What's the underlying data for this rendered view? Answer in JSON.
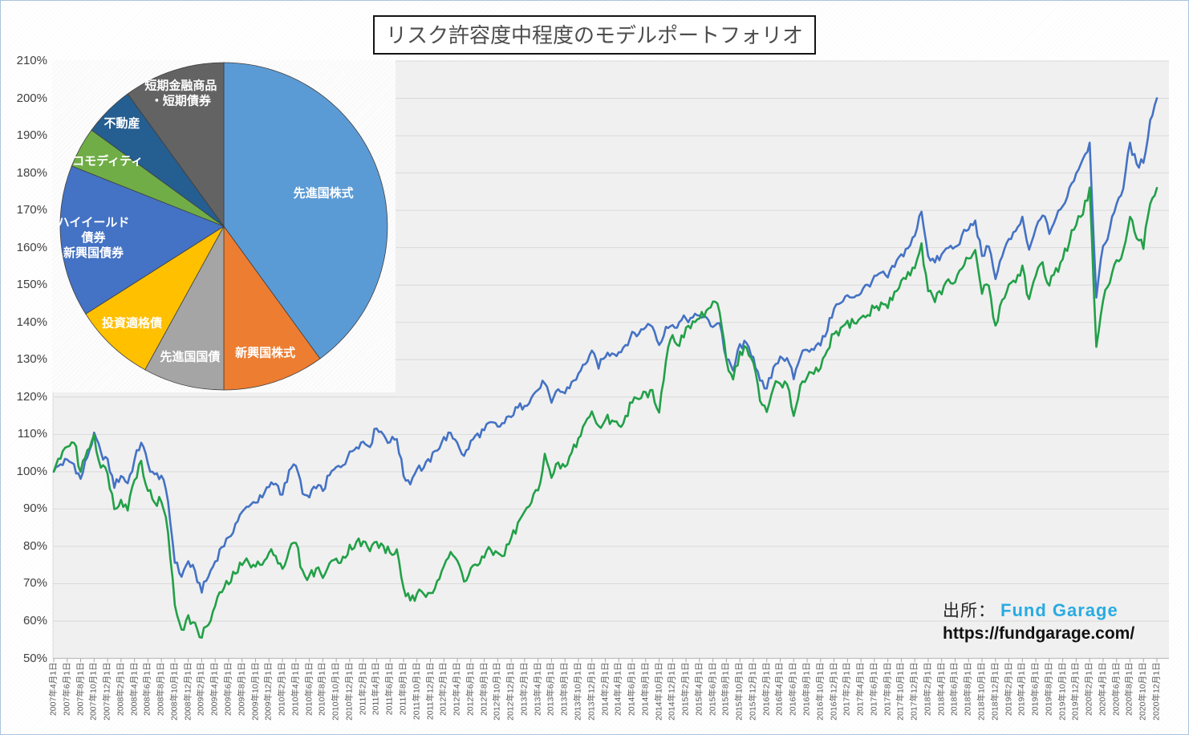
{
  "title": "リスク許容度中程度のモデルポートフォリオ",
  "source": {
    "label": "出所：",
    "name": "Fund Garage",
    "name_color": "#29ABE2",
    "url": "https://fundgarage.com/"
  },
  "chart_data": [
    {
      "type": "pie",
      "title": "モデルポートフォリオ資産配分",
      "start_angle_deg": 0,
      "direction": "clockwise",
      "slices": [
        {
          "label_lines": [
            "先進国株式"
          ],
          "value_pct": 40,
          "color": "#5B9BD5",
          "label_color": "#FFFFFF"
        },
        {
          "label_lines": [
            "新興国株式"
          ],
          "value_pct": 10,
          "color": "#ED7D31",
          "label_color": "#FFFFFF"
        },
        {
          "label_lines": [
            "先進国国債"
          ],
          "value_pct": 8,
          "color": "#A5A5A5",
          "label_color": "#FFFFFF"
        },
        {
          "label_lines": [
            "投資適格債"
          ],
          "value_pct": 8,
          "color": "#FFC000",
          "label_color": "#FFFFFF"
        },
        {
          "label_lines": [
            "ハイイールド",
            "債券",
            "新興国債券"
          ],
          "value_pct": 15,
          "color": "#4472C4",
          "label_color": "#FFFFFF"
        },
        {
          "label_lines": [
            "コモディティ"
          ],
          "value_pct": 4,
          "color": "#70AD47",
          "label_color": "#FFFFFF"
        },
        {
          "label_lines": [
            "不動産"
          ],
          "value_pct": 5,
          "color": "#255E91",
          "label_color": "#FFFFFF"
        },
        {
          "label_lines": [
            "短期金融商品",
            "・短期債券"
          ],
          "value_pct": 10,
          "color": "#636363",
          "label_color": "#FFFFFF"
        }
      ]
    },
    {
      "type": "line",
      "grid": true,
      "legend": "none",
      "ylim_pct": [
        50,
        210
      ],
      "y_tick_labels": [
        "50%",
        "60%",
        "70%",
        "80%",
        "90%",
        "100%",
        "110%",
        "120%",
        "130%",
        "140%",
        "150%",
        "160%",
        "170%",
        "180%",
        "190%",
        "200%",
        "210%"
      ],
      "x_start_month": "2007-04",
      "x_end_month": "2020-12",
      "x_tick_labels": [
        "2007年4月1日",
        "2007年6月1日",
        "2007年8月1日",
        "2007年10月1日",
        "2007年12月1日",
        "2008年2月1日",
        "2008年4月1日",
        "2008年6月1日",
        "2008年8月1日",
        "2008年10月1日",
        "2008年12月1日",
        "2009年2月1日",
        "2009年4月1日",
        "2009年6月1日",
        "2009年8月1日",
        "2009年10月1日",
        "2009年12月1日",
        "2010年2月1日",
        "2010年4月1日",
        "2010年6月1日",
        "2010年8月1日",
        "2010年10月1日",
        "2010年12月1日",
        "2011年2月1日",
        "2011年4月1日",
        "2011年6月1日",
        "2011年8月1日",
        "2011年10月1日",
        "2011年12月1日",
        "2012年2月1日",
        "2012年4月1日",
        "2012年6月1日",
        "2012年8月1日",
        "2012年10月1日",
        "2012年12月1日",
        "2013年2月1日",
        "2013年4月1日",
        "2013年6月1日",
        "2013年8月1日",
        "2013年10月1日",
        "2013年12月1日",
        "2014年2月1日",
        "2014年4月1日",
        "2014年6月1日",
        "2014年8月1日",
        "2014年10月1日",
        "2014年12月1日",
        "2015年2月1日",
        "2015年4月1日",
        "2015年6月1日",
        "2015年8月1日",
        "2015年10月1日",
        "2015年12月1日",
        "2016年2月1日",
        "2016年4月1日",
        "2016年6月1日",
        "2016年8月1日",
        "2016年10月1日",
        "2016年12月1日",
        "2017年2月1日",
        "2017年4月1日",
        "2017年6月1日",
        "2017年8月1日",
        "2017年10月1日",
        "2017年12月1日",
        "2018年2月1日",
        "2018年4月1日",
        "2018年6月1日",
        "2018年8月1日",
        "2018年10月1日",
        "2018年12月1日",
        "2019年2月1日",
        "2019年4月1日",
        "2019年6月1日",
        "2019年8月1日",
        "2019年10月1日",
        "2019年12月1日",
        "2020年2月1日",
        "2020年4月1日",
        "2020年6月1日",
        "2020年8月1日",
        "2020年10月1日",
        "2020年12月1日"
      ],
      "series": [
        {
          "id": "blue-line",
          "color": "#4472C4",
          "values_pct_monthly": [
            100,
            102,
            103,
            102,
            98,
            104,
            110,
            105,
            103,
            96,
            99,
            97,
            103,
            108,
            102,
            99,
            99,
            92,
            76,
            72,
            76,
            73,
            68,
            72,
            76,
            80,
            82,
            86,
            89,
            91,
            92,
            93,
            96,
            97,
            94,
            100,
            102,
            94,
            93,
            96,
            95,
            99,
            101,
            102,
            105,
            107,
            108,
            107,
            112,
            110,
            108,
            109,
            99,
            97,
            101,
            101,
            103,
            106,
            109,
            110,
            108,
            104,
            108,
            110,
            111,
            113,
            112,
            113,
            115,
            117,
            118,
            120,
            122,
            124,
            118,
            122,
            121,
            124,
            126,
            129,
            132,
            128,
            131,
            132,
            132,
            134,
            137,
            137,
            139,
            139,
            134,
            139,
            139,
            140,
            141,
            141,
            142,
            141,
            139,
            140,
            130,
            127,
            134,
            134,
            131,
            124,
            122,
            128,
            131,
            130,
            125,
            131,
            133,
            133,
            134,
            138,
            144,
            145,
            147,
            147,
            148,
            150,
            152,
            153,
            152,
            155,
            158,
            160,
            163,
            170,
            158,
            156,
            158,
            160,
            160,
            163,
            165,
            167,
            158,
            160,
            152,
            158,
            162,
            164,
            168,
            159,
            165,
            169,
            164,
            168,
            171,
            176,
            180,
            184,
            188,
            147,
            160,
            165,
            172,
            176,
            188,
            182,
            183,
            194,
            200
          ]
        },
        {
          "id": "green-line",
          "color": "#22A048",
          "values_pct_monthly": [
            100,
            104,
            107,
            108,
            100,
            106,
            110,
            101,
            100,
            90,
            93,
            90,
            98,
            103,
            95,
            92,
            92,
            84,
            64,
            58,
            61,
            59,
            56,
            59,
            64,
            68,
            70,
            73,
            75,
            76,
            75,
            75,
            78,
            78,
            74,
            79,
            81,
            73,
            72,
            74,
            72,
            75,
            77,
            77,
            80,
            81,
            81,
            79,
            81,
            80,
            78,
            79,
            69,
            65,
            67,
            67,
            68,
            71,
            75,
            78,
            76,
            71,
            74,
            75,
            77,
            79,
            78,
            78,
            82,
            86,
            89,
            92,
            95,
            105,
            98,
            102,
            101,
            105,
            109,
            113,
            116,
            112,
            114,
            114,
            112,
            115,
            119,
            119,
            121,
            122,
            116,
            130,
            137,
            134,
            138,
            140,
            141,
            143,
            145,
            143,
            130,
            125,
            132,
            133,
            129,
            119,
            116,
            123,
            124,
            123,
            115,
            123,
            125,
            126,
            128,
            132,
            137,
            138,
            140,
            140,
            141,
            142,
            144,
            145,
            144,
            148,
            151,
            153,
            155,
            161,
            148,
            146,
            148,
            151,
            151,
            154,
            157,
            159,
            148,
            150,
            139,
            146,
            150,
            151,
            155,
            146,
            152,
            156,
            150,
            154,
            157,
            162,
            166,
            169,
            176,
            133,
            146,
            150,
            157,
            159,
            168,
            162,
            160,
            172,
            176
          ]
        }
      ]
    }
  ]
}
